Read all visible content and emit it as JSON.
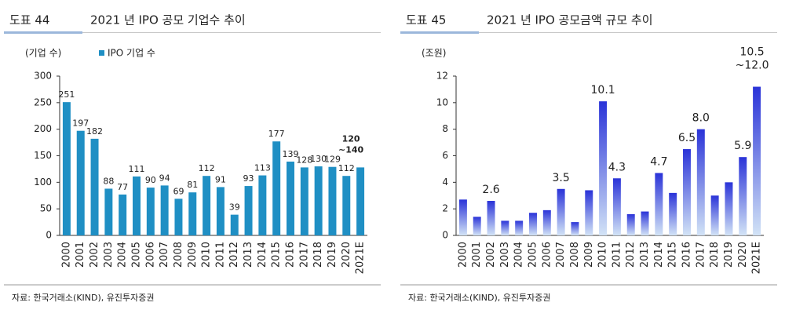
{
  "chart_data": [
    {
      "type": "bar",
      "label": "도표 44",
      "title": "2021 년 IPO 공모 기업수 추이",
      "unit_label": "(기업 수)",
      "categories": [
        "2000",
        "2001",
        "2002",
        "2003",
        "2004",
        "2005",
        "2006",
        "2007",
        "2008",
        "2009",
        "2010",
        "2011",
        "2012",
        "2013",
        "2014",
        "2015",
        "2016",
        "2017",
        "2018",
        "2019",
        "2020",
        "2021E"
      ],
      "series": [
        {
          "name": "IPO 기업 수",
          "color": "#1f8fc4",
          "values": [
            251,
            197,
            182,
            88,
            77,
            111,
            90,
            94,
            69,
            81,
            112,
            91,
            39,
            93,
            113,
            177,
            139,
            128,
            130,
            129,
            112,
            128
          ],
          "value_labels": [
            "251",
            "197",
            "182",
            "88",
            "77",
            "111",
            "90",
            "94",
            "69",
            "81",
            "112",
            "91",
            "39",
            "93",
            "113",
            "177",
            "139",
            "128",
            "130",
            "129",
            "112",
            null
          ]
        }
      ],
      "annotation": [
        "120",
        "~140"
      ],
      "annotation_color": "#1a2bb0",
      "ylim": [
        0,
        300
      ],
      "yticks": [
        0,
        50,
        100,
        150,
        200,
        250,
        300
      ],
      "source": "자료: 한국거래소(KIND), 유진투자증권"
    },
    {
      "type": "gradient-bar",
      "label": "도표 45",
      "title": "2021 년 IPO 공모금액 규모 추이",
      "unit_label": "(조원)",
      "categories": [
        "2000",
        "2001",
        "2002",
        "2003",
        "2004",
        "2005",
        "2006",
        "2007",
        "2008",
        "2009",
        "2010",
        "2011",
        "2012",
        "2013",
        "2014",
        "2015",
        "2016",
        "2017",
        "2018",
        "2019",
        "2020",
        "2021E"
      ],
      "values": [
        2.7,
        1.4,
        2.6,
        1.1,
        1.1,
        1.7,
        1.9,
        3.5,
        1.0,
        3.4,
        10.1,
        4.3,
        1.6,
        1.8,
        4.7,
        3.2,
        6.5,
        8.0,
        3.0,
        4.0,
        5.9,
        11.2
      ],
      "value_labels": [
        null,
        null,
        "2.6",
        null,
        null,
        null,
        null,
        "3.5",
        null,
        null,
        "10.1",
        "4.3",
        null,
        null,
        "4.7",
        null,
        "6.5",
        "8.0",
        null,
        null,
        "5.9",
        null
      ],
      "color": "#2a33d8",
      "gradient_to": "#d2e3f6",
      "annotation": [
        "10.5",
        "~12.0"
      ],
      "annotation_color": "#e0201b",
      "ylim": [
        0,
        12
      ],
      "yticks": [
        0,
        2,
        4,
        6,
        8,
        10,
        12
      ],
      "source": "자료: 한국거래소(KIND), 유진투자증권"
    }
  ]
}
